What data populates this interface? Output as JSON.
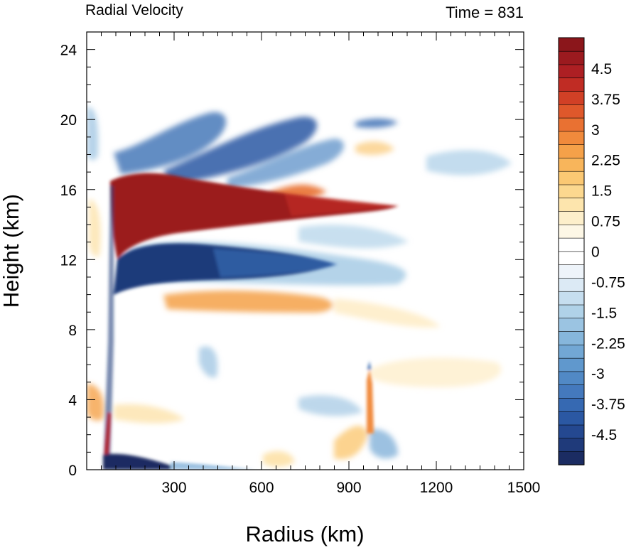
{
  "chart_data": {
    "type": "heatmap",
    "title_left": "Radial Velocity",
    "title_right": "Time = 831",
    "xlabel": "Radius (km)",
    "ylabel": "Height (km)",
    "xlim": [
      0,
      1500
    ],
    "ylim": [
      0,
      25
    ],
    "x_ticks": [
      300,
      600,
      900,
      1200,
      1500
    ],
    "y_ticks": [
      0,
      4,
      8,
      12,
      16,
      20,
      24
    ],
    "colorbar": {
      "min": -5.25,
      "max": 5.25,
      "step": 0.375,
      "tick_labels": [
        "4.5",
        "3.75",
        "3",
        "2.25",
        "1.5",
        "0.75",
        "0",
        "-0.75",
        "-1.5",
        "-2.25",
        "-3",
        "-3.75",
        "-4.5"
      ],
      "colors": [
        "#1b2c62",
        "#1f3a7a",
        "#244890",
        "#2b58a3",
        "#3669b2",
        "#4479bd",
        "#5189c5",
        "#6098cd",
        "#72a7d4",
        "#86b6db",
        "#9bc4e2",
        "#b0d2e8",
        "#c6deef",
        "#dceaf5",
        "#eef4fa",
        "#ffffff",
        "#ffffff",
        "#fdf7e6",
        "#fdefcb",
        "#fde5ad",
        "#fcd88f",
        "#fbc873",
        "#f8b55b",
        "#f5a149",
        "#f08a3c",
        "#e97132",
        "#df582b",
        "#d14026",
        "#c02c24",
        "#ad1f23",
        "#9b1a1f",
        "#8b161b"
      ]
    }
  }
}
